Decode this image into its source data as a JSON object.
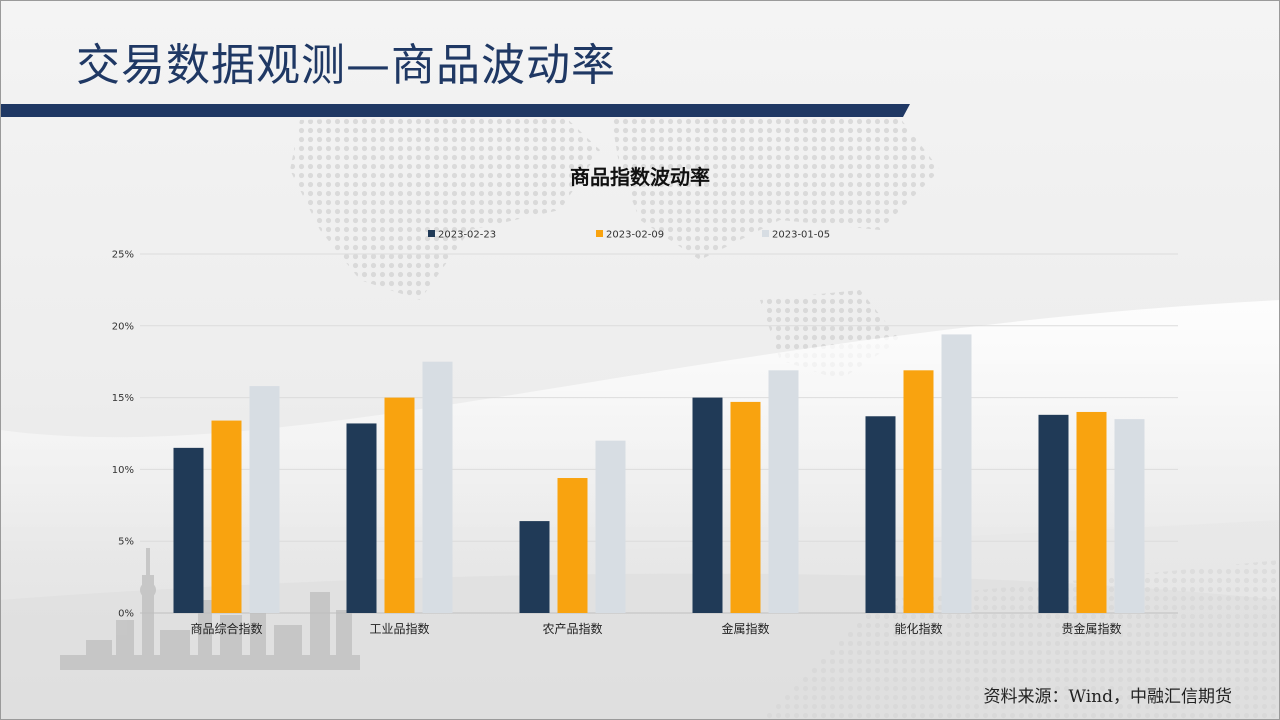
{
  "slide": {
    "title": "交易数据观测—商品波动率",
    "source": "资料来源：Wind，中融汇信期货"
  },
  "colors": {
    "navy": "#203a57",
    "orange": "#f9a30f",
    "light_gray": "#d7dde3",
    "title_blue": "#1f3864"
  },
  "chart_data": {
    "type": "bar",
    "title": "商品指数波动率",
    "categories": [
      "商品综合指数",
      "工业品指数",
      "农产品指数",
      "金属指数",
      "能化指数",
      "贵金属指数"
    ],
    "series": [
      {
        "name": "2023-02-23",
        "color": "#203a57",
        "values": [
          11.5,
          13.2,
          6.4,
          15.0,
          13.7,
          13.8
        ]
      },
      {
        "name": "2023-02-09",
        "color": "#f9a30f",
        "values": [
          13.4,
          15.0,
          9.4,
          14.7,
          16.9,
          14.0
        ]
      },
      {
        "name": "2023-01-05",
        "color": "#d7dde3",
        "values": [
          15.8,
          17.5,
          12.0,
          16.9,
          19.4,
          13.5
        ]
      }
    ],
    "ylim": [
      0,
      25
    ],
    "yticks": [
      0,
      5,
      10,
      15,
      20,
      25
    ],
    "ytick_labels": [
      "0%",
      "5%",
      "10%",
      "15%",
      "20%",
      "25%"
    ],
    "xlabel": "",
    "ylabel": "",
    "grid": true,
    "legend_position": "top"
  }
}
